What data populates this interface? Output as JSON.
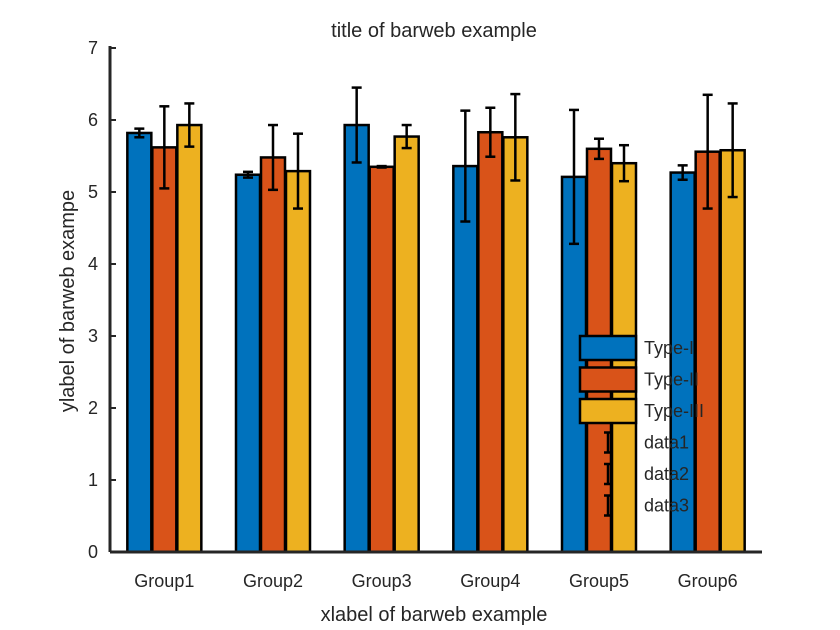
{
  "chart_data": {
    "type": "bar",
    "title": "title of barweb example",
    "xlabel": "xlabel of barweb example",
    "ylabel": "ylabel of barweb exampe",
    "ylim": [
      0,
      7
    ],
    "yticks": [
      "0",
      "1",
      "2",
      "3",
      "4",
      "5",
      "6",
      "7"
    ],
    "categories": [
      "Group1",
      "Group2",
      "Group3",
      "Group4",
      "Group5",
      "Group6"
    ],
    "series": [
      {
        "name": "Type-I",
        "color": "#0072BD",
        "values": [
          5.82,
          5.24,
          5.93,
          5.36,
          5.21,
          5.27
        ],
        "errors": [
          0.06,
          0.04,
          0.52,
          0.77,
          0.93,
          0.1
        ]
      },
      {
        "name": "Type-II",
        "color": "#D95319",
        "values": [
          5.62,
          5.48,
          5.35,
          5.83,
          5.6,
          5.56
        ],
        "errors": [
          0.57,
          0.45,
          0.01,
          0.34,
          0.14,
          0.79
        ]
      },
      {
        "name": "Type-III",
        "color": "#EDB120",
        "values": [
          5.93,
          5.29,
          5.77,
          5.76,
          5.4,
          5.58
        ],
        "errors": [
          0.3,
          0.52,
          0.16,
          0.6,
          0.25,
          0.65
        ]
      }
    ],
    "legend": {
      "location": "lower-right inside axes",
      "entries": [
        "Type-I",
        "Type-II",
        "Type-III",
        "data1",
        "data2",
        "data3"
      ]
    },
    "grid": false
  }
}
